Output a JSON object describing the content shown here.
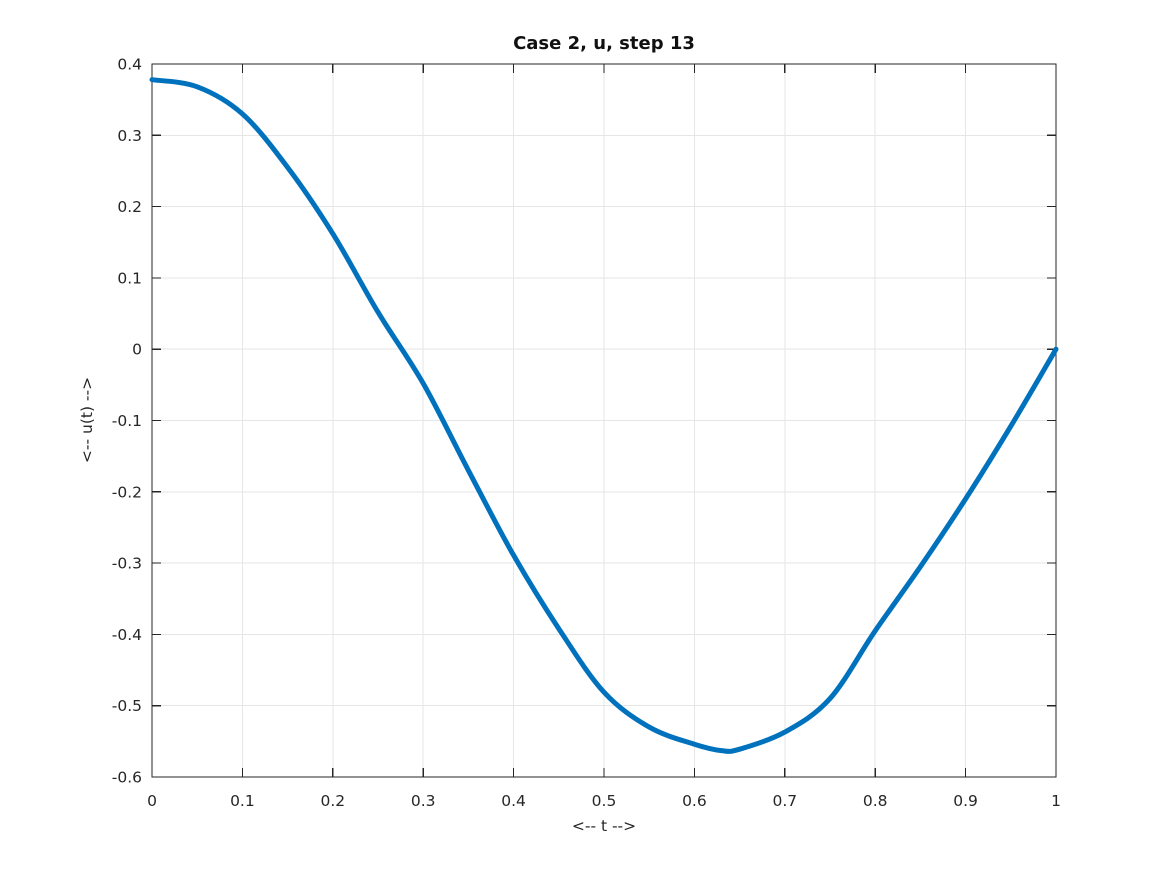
{
  "figure": {
    "background": "#ffffff"
  },
  "chart_data": {
    "type": "line",
    "title": "Case 2, u, step 13",
    "xlabel": "<-- t -->",
    "ylabel": "<-- u(t) -->",
    "xlim": [
      0,
      1
    ],
    "ylim": [
      -0.6,
      0.4
    ],
    "grid": true,
    "legend_position": "none",
    "box": true,
    "xticks": {
      "values": [
        0,
        0.1,
        0.2,
        0.3,
        0.4,
        0.5,
        0.6,
        0.7,
        0.8,
        0.9,
        1
      ],
      "labels": [
        "0",
        "0.1",
        "0.2",
        "0.3",
        "0.4",
        "0.5",
        "0.6",
        "0.7",
        "0.8",
        "0.9",
        "1"
      ]
    },
    "yticks": {
      "values": [
        0.4,
        0.3,
        0.2,
        0.1,
        0,
        -0.1,
        -0.2,
        -0.3,
        -0.4,
        -0.5,
        -0.6
      ],
      "labels": [
        "0.4",
        "0.3",
        "0.2",
        "0.1",
        "0",
        "-0.1",
        "-0.2",
        "-0.3",
        "-0.4",
        "-0.5",
        "-0.6"
      ]
    },
    "series": [
      {
        "name": "u",
        "color": "#0072BD",
        "line_width": 5,
        "x": [
          0.0,
          0.05,
          0.1,
          0.15,
          0.2,
          0.25,
          0.3,
          0.35,
          0.4,
          0.45,
          0.5,
          0.55,
          0.6,
          0.63,
          0.65,
          0.7,
          0.75,
          0.8,
          0.85,
          0.9,
          0.95,
          1.0
        ],
        "y": [
          0.378,
          0.368,
          0.33,
          0.255,
          0.162,
          0.052,
          -0.048,
          -0.17,
          -0.289,
          -0.392,
          -0.481,
          -0.53,
          -0.554,
          -0.563,
          -0.561,
          -0.537,
          -0.49,
          -0.395,
          -0.305,
          -0.21,
          -0.108,
          0.0
        ]
      }
    ]
  },
  "style": {
    "axis_color": "#262626",
    "grid_color": "#e6e6e6",
    "tick_label_color": "#262626",
    "tick_length": 9
  }
}
